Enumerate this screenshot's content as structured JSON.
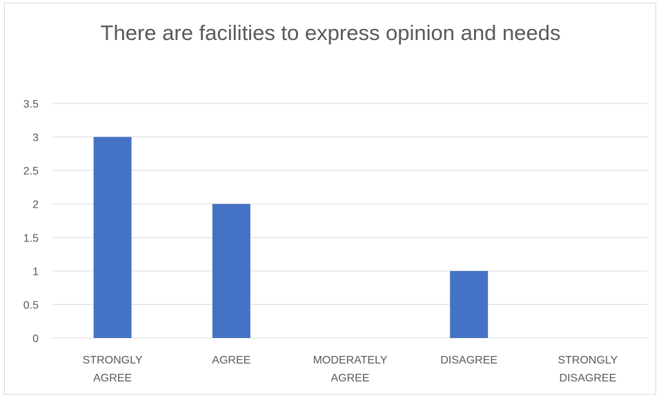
{
  "chart_data": {
    "type": "bar",
    "title": "There are facilities to express opinion and needs",
    "categories": [
      [
        "STRONGLY",
        "AGREE"
      ],
      [
        "AGREE"
      ],
      [
        "MODERATELY",
        "AGREE"
      ],
      [
        "DISAGREE"
      ],
      [
        "STRONGLY",
        "DISAGREE"
      ]
    ],
    "values": [
      3,
      2,
      0,
      1,
      0
    ],
    "ylim": [
      0,
      3.5
    ],
    "yticks": [
      "0",
      "0.5",
      "1",
      "1.5",
      "2",
      "2.5",
      "3",
      "3.5"
    ],
    "grid": true,
    "bar_color": "#4472c4",
    "grid_color": "#d9d9d9"
  }
}
